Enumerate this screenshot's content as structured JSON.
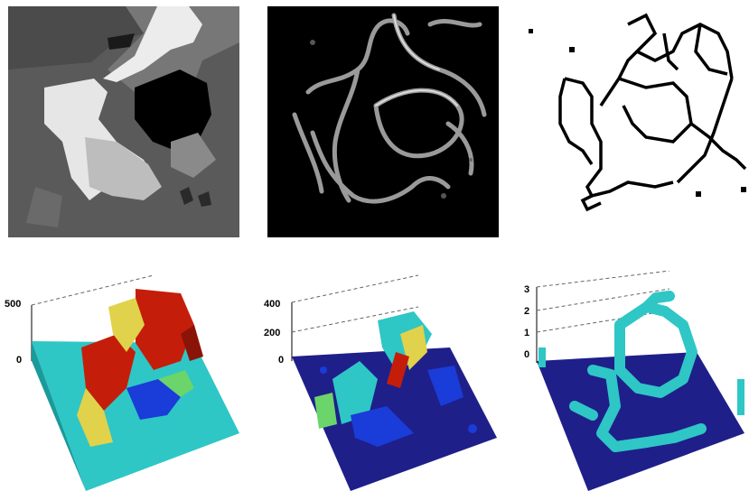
{
  "panels": [
    {
      "id": "segmented-image",
      "kind": "image"
    },
    {
      "id": "edge-magnitude-image",
      "kind": "image"
    },
    {
      "id": "binary-edge-map",
      "kind": "image"
    },
    {
      "id": "surface-plot-1",
      "kind": "3d-bar",
      "z_ticks": [
        "500",
        "0"
      ]
    },
    {
      "id": "surface-plot-2",
      "kind": "3d-bar",
      "z_ticks": [
        "400",
        "200",
        "0"
      ]
    },
    {
      "id": "surface-plot-3",
      "kind": "3d-bar",
      "z_ticks": [
        "3",
        "2",
        "1",
        "0"
      ]
    }
  ],
  "colors": {
    "cyan_base": "#2fc6c6",
    "navy_base": "#1f1f8a",
    "hot_red": "#c41e0a",
    "warm_yellow": "#e0d24a",
    "mid_blue": "#1a3cd8",
    "edge_gray": "#bdbdbd"
  }
}
